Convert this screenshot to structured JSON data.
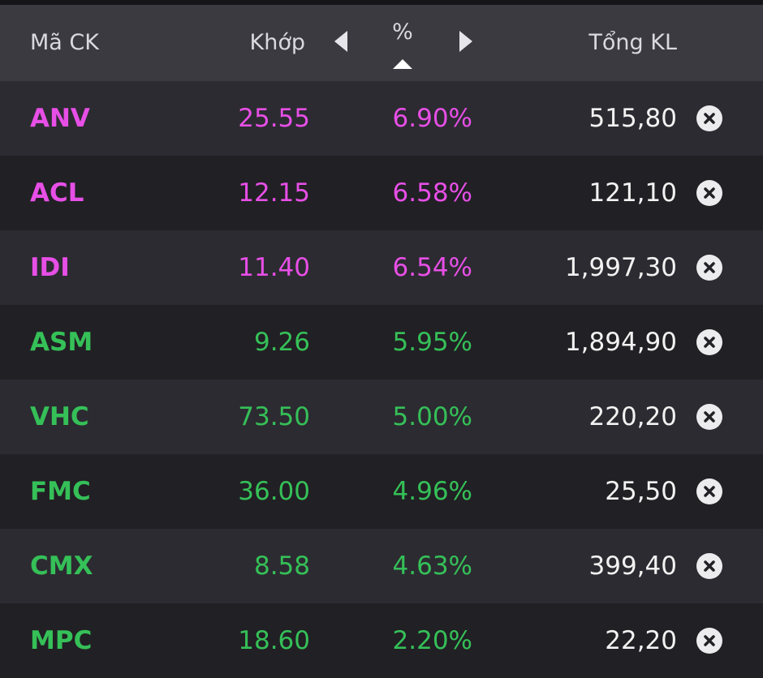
{
  "colors": {
    "ceiling": "#e74fe6",
    "up": "#35c058",
    "text": "#f2f2f2",
    "header_bg": "#3b3a40"
  },
  "header": {
    "code": "Mã CK",
    "match": "Khớp",
    "percent": "%",
    "total_volume": "Tổng KL",
    "prev_icon": "caret-left-icon",
    "next_icon": "caret-right-icon",
    "sort_icon": "sort-ascending-icon"
  },
  "rows": [
    {
      "code": "ANV",
      "match": "25.55",
      "percent": "6.90%",
      "total": "515,80",
      "status": "ceiling"
    },
    {
      "code": "ACL",
      "match": "12.15",
      "percent": "6.58%",
      "total": "121,10",
      "status": "ceiling"
    },
    {
      "code": "IDI",
      "match": "11.40",
      "percent": "6.54%",
      "total": "1,997,30",
      "status": "ceiling"
    },
    {
      "code": "ASM",
      "match": "9.26",
      "percent": "5.95%",
      "total": "1,894,90",
      "status": "up"
    },
    {
      "code": "VHC",
      "match": "73.50",
      "percent": "5.00%",
      "total": "220,20",
      "status": "up"
    },
    {
      "code": "FMC",
      "match": "36.00",
      "percent": "4.96%",
      "total": "25,50",
      "status": "up"
    },
    {
      "code": "CMX",
      "match": "8.58",
      "percent": "4.63%",
      "total": "399,40",
      "status": "up"
    },
    {
      "code": "MPC",
      "match": "18.60",
      "percent": "2.20%",
      "total": "22,20",
      "status": "up"
    }
  ],
  "row_action_icon": "remove-circle-icon"
}
